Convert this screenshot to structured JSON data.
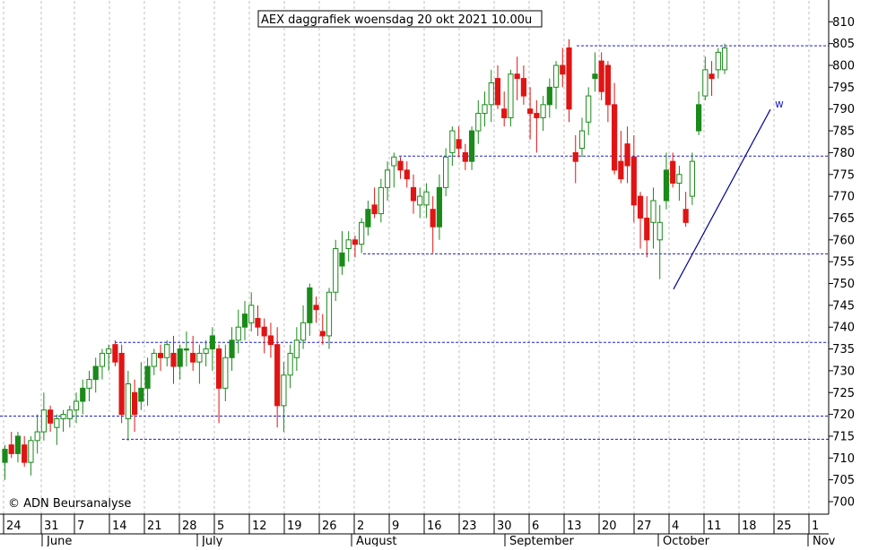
{
  "chart_data": {
    "type": "candlestick",
    "title": "AEX daggrafiek woensdag 20 okt 2021 10.00u",
    "copyright": "© ADN Beursanalyse",
    "y_axis": {
      "side": "right",
      "ylim": [
        696,
        813
      ],
      "ticks": [
        700,
        705,
        710,
        715,
        720,
        725,
        730,
        735,
        740,
        745,
        750,
        755,
        760,
        765,
        770,
        775,
        780,
        785,
        790,
        795,
        800,
        805,
        810
      ]
    },
    "x_axis": {
      "day_ticks": [
        "24",
        "31",
        "7",
        "14",
        "21",
        "28",
        "5",
        "12",
        "19",
        "26",
        "2",
        "9",
        "16",
        "23",
        "30",
        "6",
        "13",
        "20",
        "27",
        "4",
        "11",
        "18",
        "25",
        "1"
      ],
      "months": [
        "June",
        "July",
        "August",
        "September",
        "October",
        "Nov"
      ]
    },
    "colors": {
      "up": "#1a8a1a",
      "down": "#e01414",
      "line": "#000099",
      "grid": "#bfbfbf",
      "hline": "#1f1fcc",
      "wick": "#606060"
    },
    "support_resistance_lines": [
      804.5,
      779.2,
      756.8,
      736.5,
      719.6,
      714.3
    ],
    "trendline_label": "w",
    "candles": [
      [
        709,
        713,
        705,
        712
      ],
      [
        713,
        716,
        710,
        711
      ],
      [
        711,
        716,
        709,
        715
      ],
      [
        713,
        715,
        708,
        709
      ],
      [
        709,
        715,
        706,
        714
      ],
      [
        714,
        720,
        711,
        716
      ],
      [
        716,
        725,
        714,
        721
      ],
      [
        721,
        722,
        716,
        718
      ],
      [
        717,
        720,
        713,
        719
      ],
      [
        719,
        721,
        716,
        720
      ],
      [
        719,
        722,
        717,
        721
      ],
      [
        721,
        725,
        718,
        723
      ],
      [
        723,
        728,
        720,
        726
      ],
      [
        726,
        730,
        723,
        728
      ],
      [
        728,
        733,
        725,
        731
      ],
      [
        731,
        735,
        728,
        734
      ],
      [
        734,
        736,
        730,
        735
      ],
      [
        736,
        737,
        731,
        732
      ],
      [
        734,
        736,
        718,
        720
      ],
      [
        719,
        730,
        714,
        727
      ],
      [
        725,
        728,
        716,
        720
      ],
      [
        723,
        732,
        721,
        726
      ],
      [
        726,
        733,
        722,
        731
      ],
      [
        731,
        735,
        729,
        734
      ],
      [
        734,
        736,
        730,
        733
      ],
      [
        733,
        737,
        731,
        736
      ],
      [
        734,
        738,
        727,
        731
      ],
      [
        731,
        736,
        728,
        735
      ],
      [
        735,
        739,
        731,
        735
      ],
      [
        734,
        738,
        730,
        732
      ],
      [
        732,
        736,
        727,
        734
      ],
      [
        734,
        737,
        731,
        735
      ],
      [
        735,
        740,
        730,
        738
      ],
      [
        735,
        736,
        718,
        726
      ],
      [
        726,
        736,
        723,
        733
      ],
      [
        733,
        740,
        730,
        737
      ],
      [
        737,
        744,
        734,
        740
      ],
      [
        740,
        746,
        737,
        743
      ],
      [
        741,
        748,
        739,
        745
      ],
      [
        742,
        745,
        738,
        740
      ],
      [
        740,
        742,
        734,
        738
      ],
      [
        738,
        741,
        733,
        736
      ],
      [
        736,
        740,
        717,
        722
      ],
      [
        722,
        732,
        716,
        729
      ],
      [
        729,
        736,
        726,
        734
      ],
      [
        733,
        740,
        730,
        737
      ],
      [
        737,
        745,
        735,
        741
      ],
      [
        741,
        750,
        738,
        749
      ],
      [
        745,
        747,
        741,
        744
      ],
      [
        739,
        743,
        736,
        738
      ],
      [
        738,
        749,
        735,
        748
      ],
      [
        748,
        760,
        746,
        758
      ],
      [
        754,
        762,
        752,
        757
      ],
      [
        758,
        762,
        755,
        760
      ],
      [
        760,
        761,
        756,
        759
      ],
      [
        759,
        765,
        757,
        764
      ],
      [
        763,
        769,
        761,
        767
      ],
      [
        768,
        772,
        765,
        766
      ],
      [
        766,
        774,
        764,
        772
      ],
      [
        772,
        778,
        769,
        776
      ],
      [
        777,
        780,
        772,
        779
      ],
      [
        778,
        779,
        774,
        776
      ],
      [
        776,
        778,
        772,
        774
      ],
      [
        772,
        775,
        766,
        769
      ],
      [
        768,
        772,
        765,
        770
      ],
      [
        768,
        773,
        765,
        771
      ],
      [
        767,
        770,
        757,
        763
      ],
      [
        763,
        775,
        760,
        772
      ],
      [
        772,
        781,
        770,
        779
      ],
      [
        780,
        786,
        777,
        785
      ],
      [
        783,
        786,
        779,
        781
      ],
      [
        780,
        782,
        776,
        778
      ],
      [
        778,
        786,
        776,
        785
      ],
      [
        785,
        792,
        782,
        789
      ],
      [
        789,
        794,
        786,
        791
      ],
      [
        791,
        799,
        787,
        796
      ],
      [
        797,
        800,
        790,
        791
      ],
      [
        790,
        794,
        786,
        788
      ],
      [
        788,
        799,
        786,
        798
      ],
      [
        798,
        802,
        792,
        797
      ],
      [
        797,
        800,
        791,
        793
      ],
      [
        790,
        795,
        783,
        789
      ],
      [
        789,
        792,
        780,
        788
      ],
      [
        788,
        793,
        785,
        791
      ],
      [
        791,
        797,
        788,
        795
      ],
      [
        795,
        801,
        790,
        800
      ],
      [
        800,
        804,
        795,
        798
      ],
      [
        804,
        806,
        787,
        790
      ],
      [
        780,
        784,
        773,
        778
      ],
      [
        781,
        788,
        779,
        785
      ],
      [
        787,
        795,
        784,
        793
      ],
      [
        797,
        803,
        794,
        798
      ],
      [
        801,
        803,
        792,
        794
      ],
      [
        800,
        801,
        787,
        791
      ],
      [
        791,
        796,
        775,
        776
      ],
      [
        778,
        785,
        773,
        774
      ],
      [
        782,
        786,
        773,
        777
      ],
      [
        779,
        784,
        764,
        768
      ],
      [
        770,
        771,
        758,
        765
      ],
      [
        765,
        770,
        756,
        760
      ],
      [
        764,
        772,
        758,
        769
      ],
      [
        760,
        768,
        751,
        764
      ],
      [
        769,
        780,
        767,
        776
      ],
      [
        778,
        780,
        772,
        773
      ],
      [
        773,
        777,
        769,
        775
      ],
      [
        767,
        771,
        763,
        764
      ],
      [
        770,
        780,
        768,
        778
      ],
      [
        785,
        794,
        784,
        791
      ],
      [
        793,
        802,
        792,
        799
      ],
      [
        798,
        801,
        793,
        797
      ],
      [
        799,
        804,
        797,
        803
      ],
      [
        799,
        805,
        798,
        804
      ]
    ]
  }
}
